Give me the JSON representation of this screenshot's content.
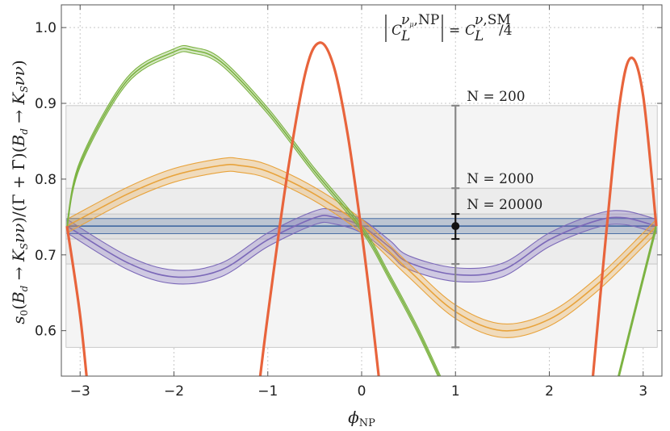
{
  "chart_data": {
    "type": "line",
    "title": "",
    "annotation": "|C_L^{ν_μ,NP}| = C_L^{ν,SM}/4",
    "xlabel": "φ_NP",
    "ylabel": "s₀(B_d → K_Sνν)/(Γ + Γ̄)(B_d → K_Sνν)",
    "xlim": [
      -3.2,
      3.2
    ],
    "ylim": [
      0.54,
      1.03
    ],
    "xticks": [
      "−3",
      "−2",
      "−1",
      "0",
      "1",
      "2",
      "3"
    ],
    "yticks": [
      "0.6",
      "0.7",
      "0.8",
      "0.9",
      "1.0"
    ],
    "grid": true,
    "colors": {
      "sm": "#4a6fa5",
      "purple": "#7b68b8",
      "orange": "#e8a33c",
      "green": "#7cb342",
      "red": "#e8643c",
      "errorbar": "#888888"
    },
    "sm_value": 0.738,
    "sm_band": [
      0.728,
      0.748
    ],
    "series": [
      {
        "key": "purple",
        "x": [
          -3.14,
          -2.5,
          -2.0,
          -1.5,
          -1.0,
          -0.5,
          -0.3,
          0.0,
          0.3,
          0.5,
          1.0,
          1.5,
          2.0,
          2.5,
          2.8,
          3.14
        ],
        "values": [
          0.738,
          0.69,
          0.671,
          0.68,
          0.72,
          0.749,
          0.75,
          0.738,
          0.71,
          0.69,
          0.674,
          0.68,
          0.72,
          0.745,
          0.749,
          0.738
        ],
        "band": 0.009
      },
      {
        "key": "orange",
        "x": [
          -3.14,
          -2.5,
          -2.0,
          -1.5,
          -1.3,
          -1.0,
          -0.5,
          0.0,
          0.5,
          1.0,
          1.5,
          2.0,
          2.5,
          3.0,
          3.14
        ],
        "values": [
          0.738,
          0.78,
          0.805,
          0.818,
          0.818,
          0.81,
          0.78,
          0.738,
          0.68,
          0.625,
          0.6,
          0.615,
          0.66,
          0.72,
          0.738
        ],
        "band": 0.009
      },
      {
        "key": "green",
        "x": [
          -3.14,
          -3.0,
          -2.5,
          -2.0,
          -1.8,
          -1.5,
          -1.0,
          -0.5,
          0.0,
          0.3,
          0.6,
          0.9
        ],
        "values": [
          0.738,
          0.82,
          0.93,
          0.968,
          0.97,
          0.955,
          0.89,
          0.81,
          0.735,
          0.67,
          0.6,
          0.52
        ],
        "band": 0.004
      },
      {
        "key": "green",
        "x": [
          2.7,
          2.9,
          3.14
        ],
        "values": [
          0.52,
          0.62,
          0.738
        ],
        "band": 0.004
      },
      {
        "key": "red",
        "x": [
          -3.14,
          -3.0,
          -2.9
        ],
        "values": [
          0.738,
          0.62,
          0.5
        ],
        "band": 0.002
      },
      {
        "key": "red",
        "x": [
          -1.1,
          -1.0,
          -0.8,
          -0.6,
          -0.45,
          -0.3,
          -0.15,
          0.0,
          0.1,
          0.2
        ],
        "values": [
          0.52,
          0.62,
          0.8,
          0.94,
          0.98,
          0.95,
          0.86,
          0.73,
          0.63,
          0.52
        ],
        "band": 0.002
      },
      {
        "key": "red",
        "x": [
          2.45,
          2.6,
          2.75,
          2.87,
          3.0,
          3.14
        ],
        "values": [
          0.52,
          0.72,
          0.9,
          0.96,
          0.91,
          0.738
        ],
        "band": 0.002
      }
    ],
    "error_bars": [
      {
        "label": "N = 200",
        "x": 1.0,
        "y": 0.738,
        "low": 0.578,
        "high": 0.897
      },
      {
        "label": "N = 2000",
        "x": 1.0,
        "y": 0.738,
        "low": 0.688,
        "high": 0.788
      },
      {
        "label": "N = 20000",
        "x": 1.0,
        "y": 0.738,
        "low": 0.721,
        "high": 0.754
      }
    ]
  }
}
